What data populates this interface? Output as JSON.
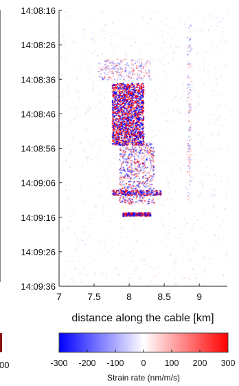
{
  "chart_data": [
    {
      "type": "heatmap",
      "title": "",
      "xlabel": "distance along the cable [km]",
      "ylabel": "",
      "x_ticks": [
        "7",
        "7.5",
        "8",
        "8.5",
        "9"
      ],
      "x_tick_values": [
        7,
        7.5,
        8,
        8.5,
        9
      ],
      "xlim": [
        7,
        9.4
      ],
      "y_ticks": [
        "14:08:16",
        "14:08:26",
        "14:08:36",
        "14:08:46",
        "14:08:56",
        "14:09:06",
        "14:09:16",
        "14:09:26",
        "14:09:36"
      ],
      "y_tick_values_seconds": [
        0,
        10,
        20,
        30,
        40,
        50,
        60,
        70,
        80
      ],
      "ylim_seconds": [
        0,
        80
      ],
      "y_axis": "time increasing downward",
      "grid": false,
      "features": [
        {
          "kind": "intense_patch",
          "x_range_km": [
            7.75,
            8.2
          ],
          "time_range_s": [
            21,
            39
          ]
        },
        {
          "kind": "scattered_band",
          "x_range_km": [
            7.55,
            8.3
          ],
          "time_range_s": [
            14,
            20
          ]
        },
        {
          "kind": "vertical_trail",
          "x_range_km": [
            7.85,
            8.35
          ],
          "time_range_s": [
            38,
            56
          ]
        },
        {
          "kind": "horizontal_streak",
          "x_range_km": [
            7.75,
            8.45
          ],
          "time_range_s": [
            52,
            53.5
          ]
        },
        {
          "kind": "horizontal_streak",
          "x_range_km": [
            7.9,
            8.3
          ],
          "time_range_s": [
            58.5,
            59.5
          ]
        },
        {
          "kind": "faint_vertical_line",
          "x_km": 8.85,
          "time_range_s": [
            4,
            55
          ]
        }
      ]
    },
    {
      "type": "colorbar",
      "label": "Strain rate (nm/m/s)",
      "ticks": [
        "-300",
        "-200",
        "-100",
        "0",
        "100",
        "200",
        "300"
      ],
      "tick_values": [
        -300,
        -200,
        -100,
        0,
        100,
        200,
        300
      ],
      "range": [
        -300,
        300
      ],
      "colormap": [
        "#0000ff",
        "#ffffff",
        "#ff0000"
      ]
    }
  ],
  "partial_left_panel": {
    "colorbar_tick": "00"
  },
  "colors": {
    "negative": "#0000ff",
    "neutral": "#ffffff",
    "positive": "#ff0000",
    "axis": "#222222"
  }
}
